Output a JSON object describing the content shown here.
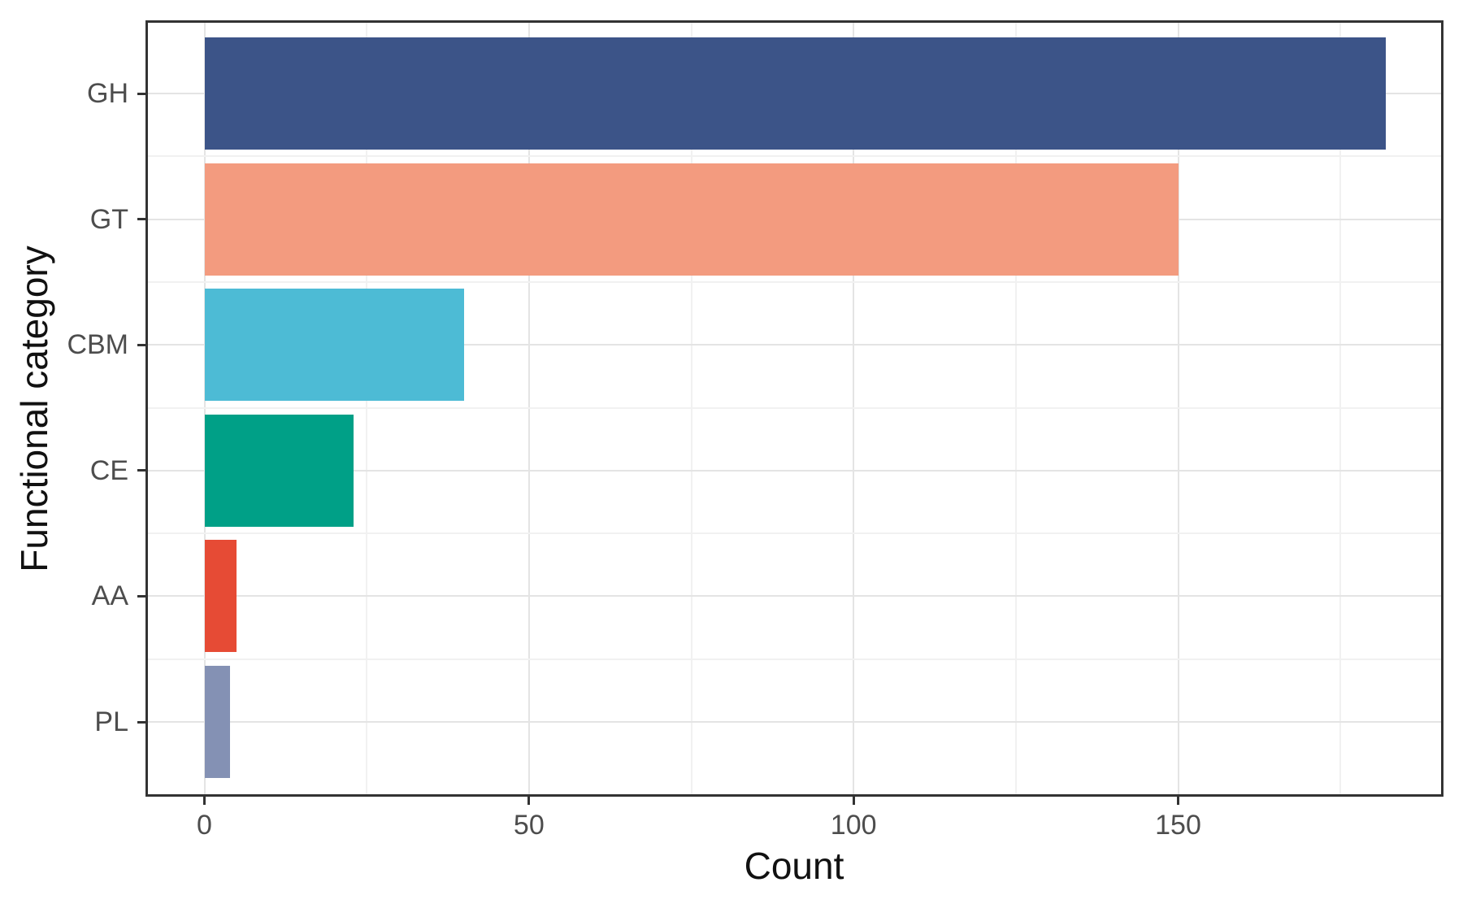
{
  "chart_data": {
    "type": "bar",
    "orientation": "horizontal",
    "title": "",
    "xlabel": "Count",
    "ylabel": "Functional category",
    "categories": [
      "GH",
      "GT",
      "CBM",
      "CE",
      "AA",
      "PL"
    ],
    "values": [
      182,
      150,
      40,
      23,
      5,
      4
    ],
    "bar_colors": [
      "#3C5488",
      "#F39B7F",
      "#4DBBD5",
      "#00A087",
      "#E64B35",
      "#8491B4"
    ],
    "x_ticks": [
      0,
      50,
      100,
      150
    ],
    "x_tick_labels": [
      "0",
      "50",
      "100",
      "150"
    ],
    "x_minor_ticks": [
      25,
      75,
      125,
      175
    ],
    "xlim": [
      0,
      182
    ],
    "grid": true,
    "legend": false
  },
  "style": {
    "background": "#ffffff",
    "panel_background": "#ffffff",
    "panel_border": "#333333",
    "major_grid": "#e4e4e4",
    "minor_grid": "#f1f1f1",
    "tick_color": "#333333",
    "tick_label_color": "#4d4d4d",
    "axis_title_color": "#111111"
  }
}
